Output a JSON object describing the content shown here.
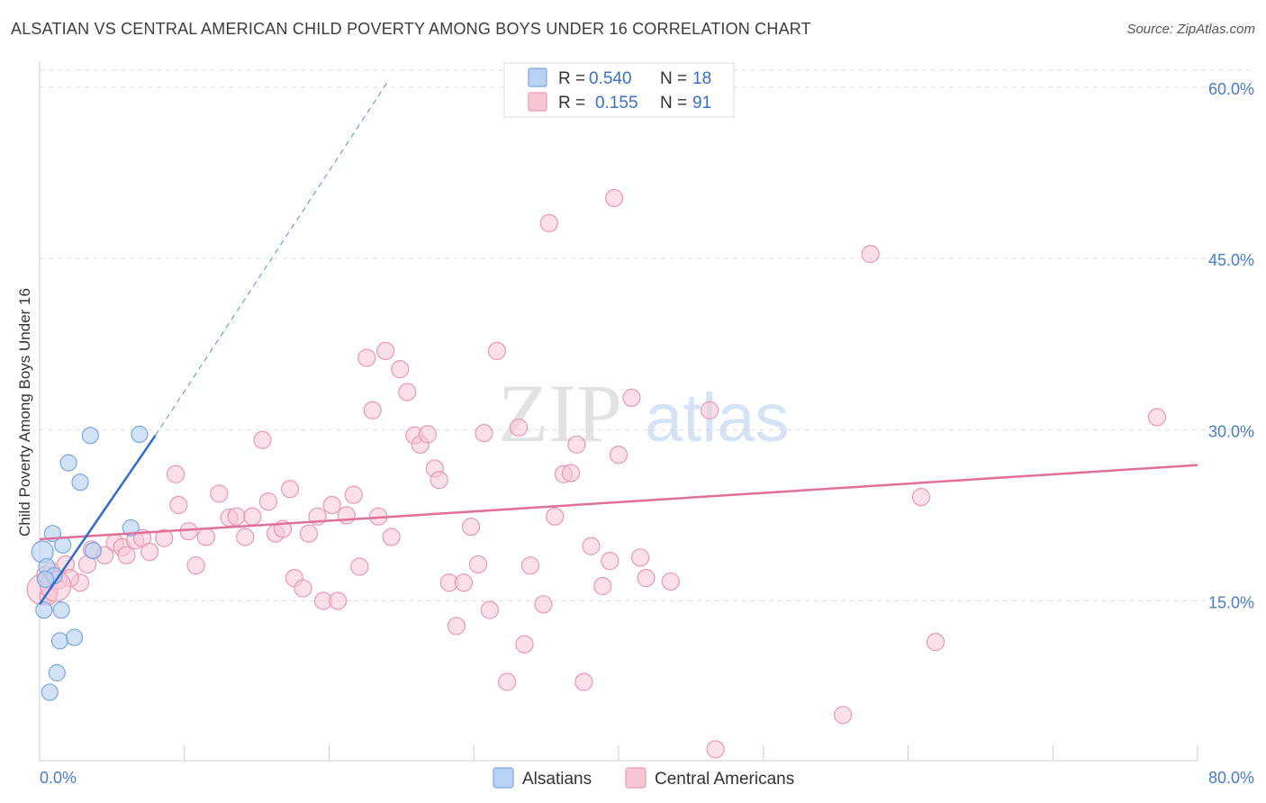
{
  "title": "ALSATIAN VS CENTRAL AMERICAN CHILD POVERTY AMONG BOYS UNDER 16 CORRELATION CHART",
  "source": "Source: ZipAtlas.com",
  "watermark": {
    "zip": "ZIP",
    "atlas": "atlas"
  },
  "colors": {
    "alsatian_fill": "#b8d2f3",
    "alsatian_stroke": "#7aa6e0",
    "alsatian_line": "#2f6ccf",
    "central_fill": "#f7c6d5",
    "central_stroke": "#e898b3",
    "central_line": "#e0709a",
    "tick_text": "#4a7cc9",
    "grid": "#dddddd"
  },
  "legend": {
    "rows": [
      {
        "r_label": "R =",
        "r_value": "0.540",
        "n_label": "N =",
        "n_value": "18"
      },
      {
        "r_label": "R =",
        "r_value": "0.155",
        "n_label": "N =",
        "n_value": "91"
      }
    ]
  },
  "chart_data": {
    "type": "scatter",
    "xlabel": "",
    "ylabel": "Child Poverty Among Boys Under 16",
    "xlim": [
      0,
      80
    ],
    "ylim": [
      0,
      60
    ],
    "x_tick_labels": [
      "0.0%",
      "80.0%"
    ],
    "y_ticks": [
      15,
      30,
      45,
      60
    ],
    "y_tick_labels": [
      "15.0%",
      "30.0%",
      "45.0%",
      "60.0%"
    ],
    "grid": true,
    "legend_position": "top-center",
    "series": [
      {
        "name": "Alsatians",
        "r": 0.54,
        "n": 18,
        "trend": {
          "x0": 0,
          "y0": 14.7,
          "x1": 8,
          "y1": 29.5,
          "dash_to_x": 24,
          "dash_to_y": 60.4
        },
        "points": [
          [
            0.2,
            19.3
          ],
          [
            0.3,
            14.2
          ],
          [
            0.5,
            18.0
          ],
          [
            0.7,
            7.0
          ],
          [
            0.9,
            20.9
          ],
          [
            1.0,
            17.2
          ],
          [
            1.2,
            8.7
          ],
          [
            1.4,
            11.5
          ],
          [
            1.5,
            14.2
          ],
          [
            1.6,
            19.9
          ],
          [
            2.0,
            27.1
          ],
          [
            2.4,
            11.8
          ],
          [
            2.8,
            25.4
          ],
          [
            3.5,
            29.5
          ],
          [
            3.7,
            19.4
          ],
          [
            6.3,
            21.4
          ],
          [
            6.9,
            29.6
          ],
          [
            0.4,
            16.9
          ]
        ]
      },
      {
        "name": "Central Americans",
        "r": 0.155,
        "n": 91,
        "trend": {
          "x0": 0,
          "y0": 20.4,
          "x1": 80,
          "y1": 26.9
        },
        "points": [
          [
            0.2,
            16.0
          ],
          [
            0.4,
            17.3
          ],
          [
            0.8,
            17.6
          ],
          [
            1.3,
            16.8
          ],
          [
            1.8,
            18.2
          ],
          [
            2.8,
            16.6
          ],
          [
            3.3,
            18.2
          ],
          [
            3.6,
            19.5
          ],
          [
            4.5,
            19.0
          ],
          [
            5.2,
            20.1
          ],
          [
            5.7,
            19.7
          ],
          [
            6.0,
            19.0
          ],
          [
            6.6,
            20.3
          ],
          [
            7.1,
            20.5
          ],
          [
            7.6,
            19.3
          ],
          [
            8.6,
            20.5
          ],
          [
            9.4,
            26.1
          ],
          [
            9.6,
            23.4
          ],
          [
            10.3,
            21.1
          ],
          [
            10.8,
            18.1
          ],
          [
            11.5,
            20.6
          ],
          [
            12.4,
            24.4
          ],
          [
            13.1,
            22.3
          ],
          [
            13.6,
            22.4
          ],
          [
            14.2,
            20.6
          ],
          [
            14.7,
            22.4
          ],
          [
            15.4,
            29.1
          ],
          [
            15.8,
            23.7
          ],
          [
            16.3,
            20.9
          ],
          [
            16.8,
            21.3
          ],
          [
            17.3,
            24.8
          ],
          [
            17.6,
            17.0
          ],
          [
            18.2,
            16.1
          ],
          [
            18.6,
            20.9
          ],
          [
            19.2,
            22.4
          ],
          [
            19.6,
            15.0
          ],
          [
            20.2,
            23.4
          ],
          [
            20.6,
            15.0
          ],
          [
            21.2,
            22.5
          ],
          [
            21.7,
            24.3
          ],
          [
            22.1,
            18.0
          ],
          [
            22.6,
            36.3
          ],
          [
            23.0,
            31.7
          ],
          [
            23.4,
            22.4
          ],
          [
            23.9,
            36.9
          ],
          [
            24.3,
            20.6
          ],
          [
            24.9,
            35.3
          ],
          [
            25.4,
            33.3
          ],
          [
            25.9,
            29.5
          ],
          [
            26.3,
            28.7
          ],
          [
            26.8,
            29.6
          ],
          [
            27.3,
            26.6
          ],
          [
            27.6,
            25.6
          ],
          [
            28.3,
            16.6
          ],
          [
            28.8,
            12.8
          ],
          [
            29.3,
            16.6
          ],
          [
            29.8,
            21.5
          ],
          [
            30.3,
            18.2
          ],
          [
            30.7,
            29.7
          ],
          [
            31.1,
            14.2
          ],
          [
            31.6,
            36.9
          ],
          [
            32.3,
            7.9
          ],
          [
            33.1,
            30.2
          ],
          [
            33.5,
            11.2
          ],
          [
            33.9,
            18.1
          ],
          [
            34.8,
            14.7
          ],
          [
            35.2,
            48.1
          ],
          [
            35.6,
            22.4
          ],
          [
            36.2,
            26.1
          ],
          [
            36.7,
            26.2
          ],
          [
            37.1,
            28.7
          ],
          [
            37.6,
            7.9
          ],
          [
            38.1,
            19.8
          ],
          [
            38.9,
            16.3
          ],
          [
            39.7,
            50.3
          ],
          [
            39.4,
            18.5
          ],
          [
            40.0,
            27.8
          ],
          [
            40.9,
            32.8
          ],
          [
            41.5,
            18.8
          ],
          [
            41.9,
            17.0
          ],
          [
            43.6,
            16.7
          ],
          [
            46.3,
            31.7
          ],
          [
            46.7,
            2.0
          ],
          [
            55.5,
            5.0
          ],
          [
            57.4,
            45.4
          ],
          [
            60.9,
            24.1
          ],
          [
            61.9,
            11.4
          ],
          [
            77.2,
            31.1
          ],
          [
            2.1,
            17.0
          ],
          [
            0.6,
            15.4
          ],
          [
            1.1,
            16.3
          ]
        ]
      }
    ]
  },
  "bottom_legend": [
    {
      "label": "Alsatians"
    },
    {
      "label": "Central Americans"
    }
  ]
}
